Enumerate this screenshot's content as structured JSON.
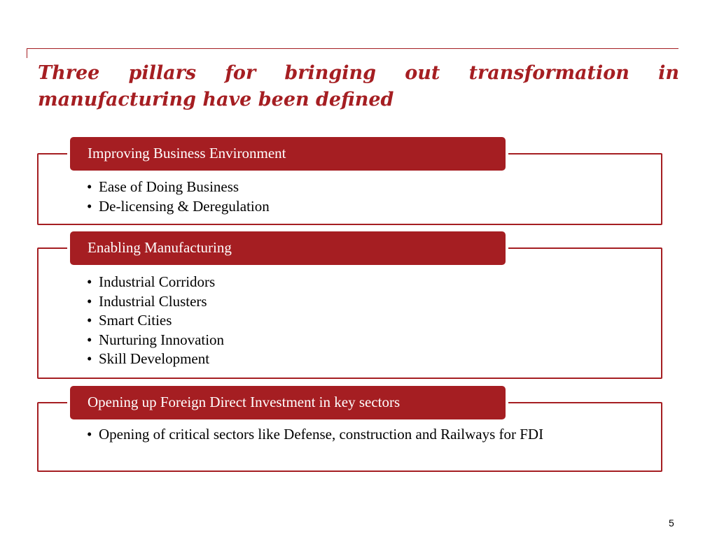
{
  "title": "Three pillars for bringing out transformation in manufacturing have been defined",
  "pillars": [
    {
      "heading": "Improving Business Environment",
      "items": [
        "Ease of Doing Business",
        "De-licensing & Deregulation"
      ]
    },
    {
      "heading": "Enabling Manufacturing",
      "items": [
        "Industrial Corridors",
        "Industrial Clusters",
        "Smart Cities",
        "Nurturing Innovation",
        "Skill Development"
      ]
    },
    {
      "heading": "Opening up Foreign Direct Investment in key sectors",
      "items": [
        "Opening of critical sectors like Defense, construction and Railways for FDI"
      ]
    }
  ],
  "bullet_char": "•",
  "page_number": "5",
  "colors": {
    "accent": "#a51e22",
    "header_text": "#ffffff",
    "body_text": "#000000"
  }
}
